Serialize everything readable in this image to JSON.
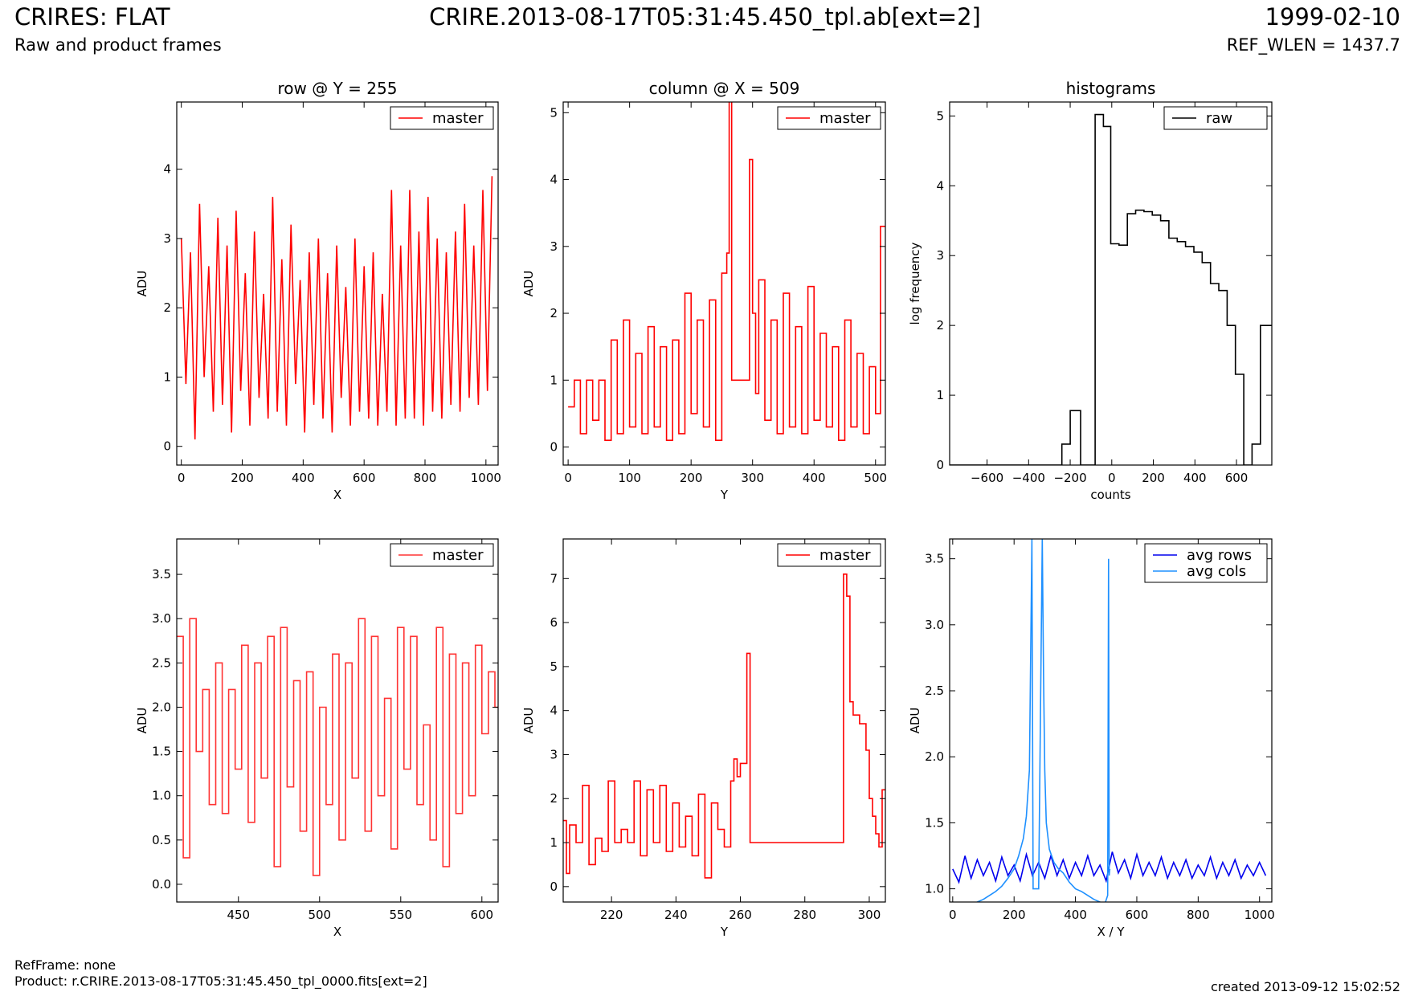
{
  "header": {
    "title_left": "CRIRES: FLAT",
    "subtitle_left": "Raw and product frames",
    "title_center": "CRIRE.2013-08-17T05:31:45.450_tpl.ab[ext=2]",
    "title_right": "1999-02-10",
    "subtitle_right": "REF_WLEN = 1437.7"
  },
  "footer": {
    "ref_frame": "RefFrame: none",
    "product": "Product: r.CRIRE.2013-08-17T05:31:45.450_tpl_0000.fits[ext=2]",
    "created": "created 2013-09-12 15:02:52"
  },
  "colors": {
    "master": "#ff0000",
    "raw": "#000000",
    "avg_rows": "#0000ee",
    "avg_cols": "#1e90ff"
  },
  "chart_data": [
    {
      "id": "row",
      "type": "line",
      "title": "row @ Y = 255",
      "xlabel": "X",
      "ylabel": "ADU",
      "xlim": [
        -15,
        1040
      ],
      "ylim": [
        -0.27,
        4.97
      ],
      "xticks": [
        0,
        200,
        400,
        600,
        800,
        1000
      ],
      "yticks": [
        0,
        1,
        2,
        3,
        4
      ],
      "legend": "upper right",
      "series": [
        {
          "name": "master",
          "color": "#ff0000",
          "step": false,
          "x": [
            0,
            15,
            30,
            45,
            60,
            75,
            90,
            105,
            120,
            135,
            150,
            165,
            180,
            195,
            210,
            225,
            240,
            255,
            270,
            285,
            300,
            315,
            330,
            345,
            360,
            375,
            390,
            405,
            420,
            435,
            450,
            465,
            480,
            495,
            510,
            525,
            540,
            555,
            570,
            585,
            600,
            615,
            630,
            645,
            660,
            675,
            690,
            705,
            720,
            735,
            750,
            765,
            780,
            795,
            810,
            825,
            840,
            855,
            870,
            885,
            900,
            915,
            930,
            945,
            960,
            975,
            990,
            1005,
            1020
          ],
          "y": [
            3.0,
            0.9,
            2.8,
            0.1,
            3.5,
            1.0,
            2.6,
            0.5,
            3.3,
            0.6,
            2.9,
            0.2,
            3.4,
            0.8,
            2.5,
            0.3,
            3.1,
            0.7,
            2.2,
            0.4,
            3.6,
            0.5,
            2.7,
            0.3,
            3.2,
            0.9,
            2.4,
            0.2,
            2.8,
            0.6,
            3.0,
            0.4,
            2.5,
            0.2,
            2.9,
            0.7,
            2.3,
            0.3,
            3.0,
            0.5,
            2.6,
            0.4,
            2.8,
            0.3,
            2.2,
            0.5,
            3.7,
            0.3,
            2.9,
            0.4,
            3.7,
            0.4,
            3.1,
            0.3,
            3.6,
            0.5,
            3.0,
            0.4,
            2.8,
            0.6,
            3.1,
            0.5,
            3.5,
            0.7,
            2.9,
            0.6,
            3.7,
            0.8,
            3.9
          ]
        }
      ]
    },
    {
      "id": "column",
      "type": "line",
      "title": "column @ X = 509",
      "xlabel": "Y",
      "ylabel": "ADU",
      "xlim": [
        -8,
        516
      ],
      "ylim": [
        -0.27,
        5.16
      ],
      "xticks": [
        0,
        100,
        200,
        300,
        400,
        500
      ],
      "yticks": [
        0,
        1,
        2,
        3,
        4,
        5
      ],
      "legend": "upper right",
      "series": [
        {
          "name": "master",
          "color": "#ff0000",
          "step": true,
          "x": [
            0,
            10,
            20,
            30,
            40,
            50,
            60,
            70,
            80,
            90,
            100,
            110,
            120,
            130,
            140,
            150,
            160,
            170,
            180,
            190,
            200,
            210,
            220,
            230,
            240,
            250,
            258,
            262,
            266,
            295,
            300,
            305,
            310,
            320,
            330,
            340,
            350,
            360,
            370,
            380,
            390,
            400,
            410,
            420,
            430,
            440,
            450,
            460,
            470,
            480,
            490,
            500,
            508
          ],
          "y": [
            0.6,
            1.0,
            0.2,
            1.0,
            0.4,
            1.0,
            0.1,
            1.6,
            0.2,
            1.9,
            0.3,
            1.4,
            0.2,
            1.8,
            0.3,
            1.5,
            0.1,
            1.6,
            0.2,
            2.3,
            0.5,
            1.9,
            0.3,
            2.2,
            0.1,
            2.6,
            2.9,
            5.2,
            1.0,
            4.3,
            2.0,
            0.8,
            2.5,
            0.4,
            1.9,
            0.2,
            2.3,
            0.3,
            1.8,
            0.2,
            2.4,
            0.4,
            1.7,
            0.3,
            1.5,
            0.1,
            1.9,
            0.3,
            1.4,
            0.2,
            1.2,
            0.5,
            3.3
          ]
        }
      ]
    },
    {
      "id": "histograms",
      "type": "line",
      "title": "histograms",
      "xlabel": "counts",
      "ylabel": "log frequency",
      "xlim": [
        -780,
        770
      ],
      "ylim": [
        0,
        5.2
      ],
      "xticks": [
        -600,
        -400,
        -200,
        0,
        200,
        400,
        600
      ],
      "yticks": [
        0,
        1,
        2,
        3,
        4,
        5
      ],
      "legend": "upper right",
      "series": [
        {
          "name": "raw",
          "color": "#000000",
          "step": true,
          "x": [
            -780,
            -240,
            -200,
            -150,
            -110,
            -80,
            -40,
            -5,
            35,
            75,
            115,
            155,
            195,
            235,
            275,
            315,
            355,
            395,
            435,
            475,
            515,
            555,
            595,
            635,
            675,
            715,
            755,
            770
          ],
          "y": [
            0,
            0.3,
            0.78,
            0,
            0,
            5.02,
            4.85,
            3.17,
            3.15,
            3.6,
            3.65,
            3.63,
            3.58,
            3.5,
            3.25,
            3.2,
            3.13,
            3.05,
            2.9,
            2.6,
            2.5,
            2.0,
            1.3,
            0,
            0.3,
            2.0,
            2.0,
            2.0
          ]
        }
      ]
    },
    {
      "id": "row-zoom",
      "type": "line",
      "title": "",
      "xlabel": "X",
      "ylabel": "ADU",
      "xlim": [
        412,
        610
      ],
      "ylim": [
        -0.2,
        3.9
      ],
      "xticks": [
        450,
        500,
        550,
        600
      ],
      "yticks": [
        0.0,
        0.5,
        1.0,
        1.5,
        2.0,
        2.5,
        3.0,
        3.5
      ],
      "legend": "upper right",
      "series": [
        {
          "name": "master",
          "color": "#ff3333",
          "step": true,
          "x": [
            412,
            416,
            420,
            424,
            428,
            432,
            436,
            440,
            444,
            448,
            452,
            456,
            460,
            464,
            468,
            472,
            476,
            480,
            484,
            488,
            492,
            496,
            500,
            504,
            508,
            512,
            516,
            520,
            524,
            528,
            532,
            536,
            540,
            544,
            548,
            552,
            556,
            560,
            564,
            568,
            572,
            576,
            580,
            584,
            588,
            592,
            596,
            600,
            604,
            608
          ],
          "y": [
            2.8,
            0.3,
            3.0,
            1.5,
            2.2,
            0.9,
            2.5,
            0.8,
            2.2,
            1.3,
            2.7,
            0.7,
            2.5,
            1.2,
            2.8,
            0.2,
            2.9,
            1.1,
            2.3,
            0.6,
            2.4,
            0.1,
            2.0,
            0.9,
            2.6,
            0.5,
            2.5,
            1.2,
            3.0,
            0.6,
            2.8,
            1.0,
            2.1,
            0.4,
            2.9,
            1.3,
            2.8,
            0.9,
            1.8,
            0.5,
            2.9,
            0.2,
            2.6,
            0.8,
            2.5,
            1.0,
            2.7,
            1.7,
            2.4,
            2.0
          ]
        }
      ]
    },
    {
      "id": "column-zoom",
      "type": "line",
      "title": "",
      "xlabel": "Y",
      "ylabel": "ADU",
      "xlim": [
        205,
        305
      ],
      "ylim": [
        -0.35,
        7.9
      ],
      "xticks": [
        220,
        240,
        260,
        280,
        300
      ],
      "yticks": [
        0,
        1,
        2,
        3,
        4,
        5,
        6,
        7
      ],
      "legend": "upper right",
      "series": [
        {
          "name": "master",
          "color": "#ff0000",
          "step": true,
          "x": [
            205,
            206,
            207,
            209,
            211,
            213,
            215,
            217,
            219,
            221,
            223,
            225,
            227,
            229,
            231,
            233,
            235,
            237,
            239,
            241,
            243,
            245,
            247,
            249,
            251,
            253,
            255,
            257,
            258,
            259,
            260,
            262,
            263,
            292,
            293,
            294,
            295,
            297,
            299,
            300,
            301,
            302,
            303,
            304
          ],
          "y": [
            1.5,
            0.3,
            1.4,
            1.0,
            2.3,
            0.5,
            1.1,
            0.8,
            2.4,
            1.0,
            1.3,
            1.0,
            2.4,
            0.7,
            2.2,
            1.0,
            2.3,
            0.8,
            1.9,
            0.9,
            1.6,
            0.7,
            2.1,
            0.2,
            1.9,
            1.3,
            0.9,
            2.4,
            2.9,
            2.5,
            2.8,
            5.3,
            1.0,
            7.1,
            6.6,
            4.2,
            3.9,
            3.7,
            3.1,
            2.0,
            1.6,
            1.2,
            0.9,
            2.2
          ]
        }
      ]
    },
    {
      "id": "averages",
      "type": "line",
      "title": "",
      "xlabel": "X / Y",
      "ylabel": "ADU",
      "xlim": [
        -10,
        1040
      ],
      "ylim": [
        0.9,
        3.65
      ],
      "xticks": [
        0,
        200,
        400,
        600,
        800,
        1000
      ],
      "yticks": [
        1.0,
        1.5,
        2.0,
        2.5,
        3.0,
        3.5
      ],
      "legend": "upper right",
      "series": [
        {
          "name": "avg rows",
          "color": "#0000ee",
          "step": false,
          "x": [
            0,
            20,
            40,
            60,
            80,
            100,
            120,
            140,
            160,
            180,
            200,
            220,
            240,
            260,
            280,
            300,
            320,
            340,
            360,
            380,
            400,
            420,
            440,
            460,
            480,
            500,
            520,
            540,
            560,
            580,
            600,
            620,
            640,
            660,
            680,
            700,
            720,
            740,
            760,
            780,
            800,
            820,
            840,
            860,
            880,
            900,
            920,
            940,
            960,
            980,
            1000,
            1020
          ],
          "y": [
            1.15,
            1.05,
            1.25,
            1.08,
            1.22,
            1.1,
            1.2,
            1.06,
            1.24,
            1.1,
            1.18,
            1.06,
            1.26,
            1.1,
            1.2,
            1.08,
            1.25,
            1.1,
            1.22,
            1.08,
            1.2,
            1.1,
            1.25,
            1.1,
            1.18,
            1.06,
            1.28,
            1.12,
            1.22,
            1.08,
            1.26,
            1.1,
            1.2,
            1.1,
            1.24,
            1.08,
            1.2,
            1.1,
            1.22,
            1.08,
            1.18,
            1.1,
            1.24,
            1.08,
            1.2,
            1.1,
            1.22,
            1.08,
            1.18,
            1.1,
            1.2,
            1.1
          ]
        },
        {
          "name": "avg cols",
          "color": "#1e90ff",
          "step": false,
          "x": [
            0,
            20,
            40,
            60,
            80,
            100,
            120,
            140,
            160,
            180,
            200,
            215,
            230,
            240,
            250,
            258,
            262,
            266,
            280,
            292,
            296,
            300,
            305,
            315,
            330,
            345,
            360,
            380,
            400,
            420,
            440,
            460,
            480,
            495,
            505,
            508,
            510,
            512
          ],
          "y": [
            0.88,
            0.85,
            0.87,
            0.88,
            0.9,
            0.92,
            0.95,
            0.98,
            1.02,
            1.08,
            1.15,
            1.25,
            1.38,
            1.55,
            1.9,
            3.65,
            1.0,
            1.0,
            1.0,
            3.65,
            2.6,
            1.9,
            1.5,
            1.3,
            1.2,
            1.15,
            1.12,
            1.05,
            1.0,
            0.98,
            0.95,
            0.92,
            0.9,
            0.88,
            0.95,
            3.5,
            1.1,
            1.15
          ]
        }
      ]
    }
  ]
}
